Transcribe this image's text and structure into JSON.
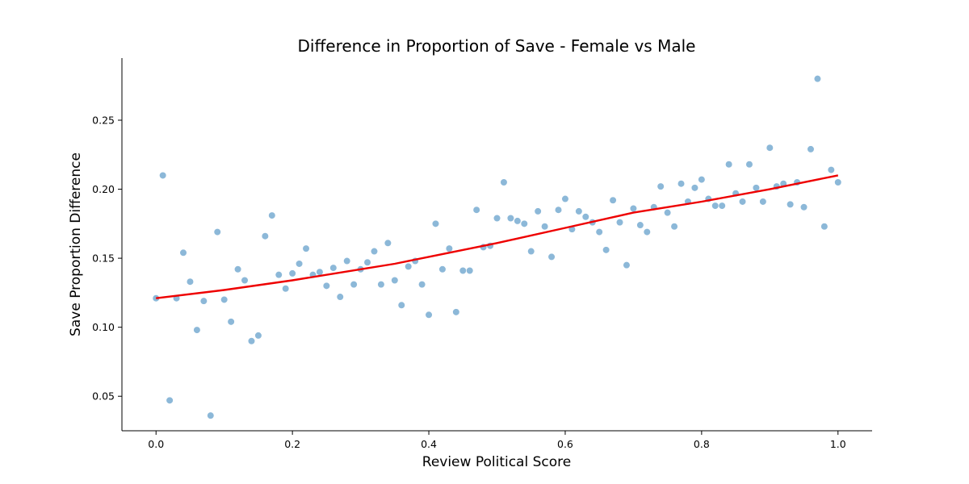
{
  "chart_data": {
    "type": "scatter",
    "title": "Difference in Proportion of Save - Female vs Male",
    "xlabel": "Review Political Score",
    "ylabel": "Save Proportion Difference",
    "xlim": [
      -0.05,
      1.05
    ],
    "ylim": [
      0.025,
      0.295
    ],
    "xticks": [
      0.0,
      0.2,
      0.4,
      0.6,
      0.8,
      1.0
    ],
    "xtick_labels": [
      "0.0",
      "0.2",
      "0.4",
      "0.6",
      "0.8",
      "1.0"
    ],
    "yticks": [
      0.05,
      0.1,
      0.15,
      0.2,
      0.25
    ],
    "ytick_labels": [
      "0.05",
      "0.10",
      "0.15",
      "0.20",
      "0.25"
    ],
    "grid": false,
    "point_color": "#7fb0d4",
    "trend_color": "#ee0000",
    "points": {
      "x": [
        0.0,
        0.01,
        0.02,
        0.03,
        0.04,
        0.05,
        0.06,
        0.07,
        0.08,
        0.09,
        0.1,
        0.11,
        0.12,
        0.13,
        0.14,
        0.15,
        0.16,
        0.17,
        0.18,
        0.19,
        0.2,
        0.21,
        0.22,
        0.23,
        0.24,
        0.25,
        0.26,
        0.27,
        0.28,
        0.29,
        0.3,
        0.31,
        0.32,
        0.33,
        0.34,
        0.35,
        0.36,
        0.37,
        0.38,
        0.39,
        0.4,
        0.41,
        0.42,
        0.43,
        0.44,
        0.45,
        0.46,
        0.47,
        0.48,
        0.49,
        0.5,
        0.51,
        0.52,
        0.53,
        0.54,
        0.55,
        0.56,
        0.57,
        0.58,
        0.59,
        0.6,
        0.61,
        0.62,
        0.63,
        0.64,
        0.65,
        0.66,
        0.67,
        0.68,
        0.69,
        0.7,
        0.71,
        0.72,
        0.73,
        0.74,
        0.75,
        0.76,
        0.77,
        0.78,
        0.79,
        0.8,
        0.81,
        0.82,
        0.83,
        0.84,
        0.85,
        0.86,
        0.87,
        0.88,
        0.89,
        0.9,
        0.91,
        0.92,
        0.93,
        0.94,
        0.95,
        0.96,
        0.97,
        0.98,
        0.99,
        1.0
      ],
      "y": [
        0.121,
        0.21,
        0.047,
        0.121,
        0.154,
        0.133,
        0.098,
        0.119,
        0.036,
        0.169,
        0.12,
        0.104,
        0.142,
        0.134,
        0.09,
        0.094,
        0.166,
        0.181,
        0.138,
        0.128,
        0.139,
        0.146,
        0.157,
        0.138,
        0.14,
        0.13,
        0.143,
        0.122,
        0.148,
        0.131,
        0.142,
        0.147,
        0.155,
        0.131,
        0.161,
        0.134,
        0.116,
        0.144,
        0.148,
        0.131,
        0.109,
        0.175,
        0.142,
        0.157,
        0.111,
        0.141,
        0.141,
        0.185,
        0.158,
        0.159,
        0.179,
        0.205,
        0.179,
        0.177,
        0.175,
        0.155,
        0.184,
        0.173,
        0.151,
        0.185,
        0.193,
        0.171,
        0.184,
        0.18,
        0.176,
        0.169,
        0.156,
        0.192,
        0.176,
        0.145,
        0.186,
        0.174,
        0.169,
        0.187,
        0.202,
        0.183,
        0.173,
        0.204,
        0.191,
        0.201,
        0.207,
        0.193,
        0.188,
        0.188,
        0.218,
        0.197,
        0.191,
        0.218,
        0.201,
        0.191,
        0.23,
        0.202,
        0.204,
        0.189,
        0.205,
        0.187,
        0.229,
        0.28,
        0.173,
        0.214,
        0.205
      ]
    },
    "trend": {
      "x": [
        0.0,
        0.1,
        0.2,
        0.3,
        0.35,
        0.4,
        0.5,
        0.6,
        0.7,
        0.8,
        0.9,
        1.0
      ],
      "y": [
        0.121,
        0.127,
        0.134,
        0.142,
        0.146,
        0.151,
        0.161,
        0.172,
        0.183,
        0.191,
        0.2,
        0.21
      ]
    }
  }
}
